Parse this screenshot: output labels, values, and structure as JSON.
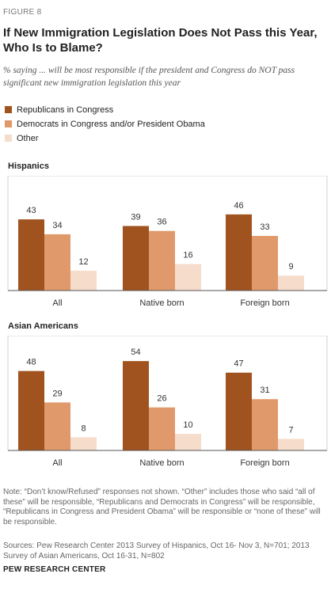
{
  "figure_label": "FIGURE 8",
  "title": "If New Immigration Legislation Does Not Pass this Year, Who Is to Blame?",
  "subtitle": "% saying ... will be most responsible if the president and Congress do NOT pass significant new immigration legislation this year",
  "legend": [
    {
      "label": "Republicans in Congress",
      "color": "#a0531e"
    },
    {
      "label": "Democrats in Congress and/or President Obama",
      "color": "#e0996b"
    },
    {
      "label": "Other",
      "color": "#f6dccb"
    }
  ],
  "chart_data": [
    {
      "type": "bar",
      "title": "Hispanics",
      "categories": [
        "All",
        "Native born",
        "Foreign born"
      ],
      "series": [
        {
          "name": "Republicans in Congress",
          "values": [
            43,
            39,
            46
          ]
        },
        {
          "name": "Democrats in Congress and/or President Obama",
          "values": [
            34,
            36,
            33
          ]
        },
        {
          "name": "Other",
          "values": [
            12,
            16,
            9
          ]
        }
      ],
      "ylim": [
        0,
        55
      ]
    },
    {
      "type": "bar",
      "title": "Asian Americans",
      "categories": [
        "All",
        "Native born",
        "Foreign born"
      ],
      "series": [
        {
          "name": "Republicans in Congress",
          "values": [
            48,
            54,
            47
          ]
        },
        {
          "name": "Democrats in Congress and/or President Obama",
          "values": [
            29,
            26,
            31
          ]
        },
        {
          "name": "Other",
          "values": [
            8,
            10,
            7
          ]
        }
      ],
      "ylim": [
        0,
        55
      ]
    }
  ],
  "note": "Note: “Don’t know/Refused” responses not shown. “Other” includes those who said “all of these” will be responsible, “Republicans and Democrats in Congress” will be responsible, “Republicans in Congress and President Obama” will be responsible or “none of these” will be responsible.",
  "sources": "Sources: Pew Research Center 2013 Survey of Hispanics, Oct 16- Nov 3, N=701; 2013 Survey of Asian Americans, Oct 16-31, N=802",
  "org": "PEW RESEARCH CENTER"
}
